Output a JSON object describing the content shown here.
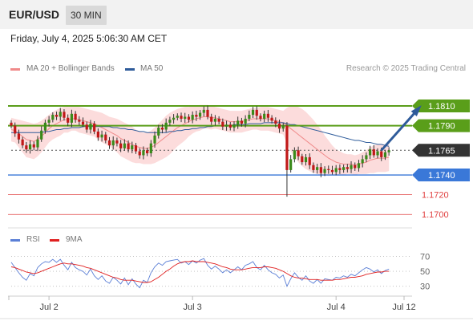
{
  "header": {
    "symbol": "EUR/USD",
    "timeframe": "30 MIN"
  },
  "datetime": "Friday, July 4, 2025 5:06:30 AM CET",
  "legend": {
    "bollinger": {
      "label": "MA 20 + Bollinger Bands",
      "color": "#f08a8a"
    },
    "ma50": {
      "label": "MA 50",
      "color": "#2e5b9a"
    },
    "copyright": "Research © 2025 Trading Central"
  },
  "rsi_legend": {
    "rsi": {
      "label": "RSI",
      "color": "#5b7fd6"
    },
    "ma9": {
      "label": "9MA",
      "color": "#e02020"
    }
  },
  "colors": {
    "green": "#5a9e1a",
    "blue": "#3a78d8",
    "red": "#e04040",
    "dark": "#333333",
    "candle_up": "#3a8a1a",
    "candle_down": "#c01818"
  },
  "chart_data": [
    {
      "type": "candlestick",
      "ylim": [
        1.1688,
        1.1836
      ],
      "x_ticks": [
        {
          "label": "Jul 2",
          "index": 10
        },
        {
          "label": "Jul 3",
          "index": 48
        },
        {
          "label": "Jul 4",
          "index": 86
        },
        {
          "label": "Jul 12",
          "index": 104
        }
      ],
      "levels": [
        {
          "label": "1.1810",
          "value": 1.181,
          "kind": "resistance",
          "color": "#5a9e1a"
        },
        {
          "label": "1.1790",
          "value": 1.179,
          "kind": "resistance",
          "color": "#5a9e1a"
        },
        {
          "label": "1.1765",
          "value": 1.1765,
          "kind": "last",
          "color": "#333333"
        },
        {
          "label": "1.1740",
          "value": 1.174,
          "kind": "pivot",
          "color": "#3a78d8"
        },
        {
          "label": "1.1720",
          "value": 1.172,
          "kind": "support",
          "color": "#e04040"
        },
        {
          "label": "1.1700",
          "value": 1.17,
          "kind": "support",
          "color": "#e04040"
        }
      ],
      "arrow": {
        "from": [
          1.1765,
          98
        ],
        "to": [
          1.1808,
          108
        ]
      },
      "closes": [
        1.179,
        1.1782,
        1.1776,
        1.177,
        1.1766,
        1.1771,
        1.1768,
        1.1776,
        1.1785,
        1.1793,
        1.1796,
        1.1801,
        1.1799,
        1.1804,
        1.1798,
        1.1793,
        1.1802,
        1.1796,
        1.1794,
        1.1791,
        1.1786,
        1.1792,
        1.1784,
        1.1778,
        1.1781,
        1.1775,
        1.177,
        1.1775,
        1.1772,
        1.1767,
        1.1772,
        1.1766,
        1.177,
        1.1764,
        1.176,
        1.1765,
        1.1762,
        1.1772,
        1.178,
        1.1788,
        1.1786,
        1.1793,
        1.1796,
        1.1798,
        1.18,
        1.1797,
        1.1799,
        1.1796,
        1.1801,
        1.1799,
        1.1803,
        1.1806,
        1.1799,
        1.1794,
        1.1797,
        1.1794,
        1.1789,
        1.1791,
        1.1788,
        1.1791,
        1.1795,
        1.1792,
        1.1797,
        1.1801,
        1.1806,
        1.18,
        1.1797,
        1.1802,
        1.1798,
        1.1795,
        1.1792,
        1.1787,
        1.179,
        1.1745,
        1.1756,
        1.1765,
        1.1759,
        1.1753,
        1.1758,
        1.175,
        1.1745,
        1.1748,
        1.1742,
        1.1746,
        1.1745,
        1.1743,
        1.1747,
        1.1745,
        1.1748,
        1.1746,
        1.175,
        1.1747,
        1.1752,
        1.1756,
        1.176,
        1.1766,
        1.176,
        1.1764,
        1.1758,
        1.1763,
        1.1765
      ],
      "ma20": [
        1.1786,
        1.1785,
        1.1782,
        1.1779,
        1.1776,
        1.1775,
        1.1774,
        1.1776,
        1.1779,
        1.1783,
        1.1787,
        1.179,
        1.1792,
        1.1794,
        1.1796,
        1.1796,
        1.1797,
        1.1797,
        1.1796,
        1.1795,
        1.1794,
        1.1793,
        1.1792,
        1.179,
        1.1788,
        1.1786,
        1.1784,
        1.1782,
        1.178,
        1.1777,
        1.1775,
        1.1773,
        1.1771,
        1.1769,
        1.1768,
        1.1767,
        1.1767,
        1.1768,
        1.177,
        1.1773,
        1.1776,
        1.1779,
        1.1782,
        1.1785,
        1.1788,
        1.179,
        1.1792,
        1.1794,
        1.1796,
        1.1797,
        1.1798,
        1.1799,
        1.1799,
        1.1798,
        1.1798,
        1.1797,
        1.1796,
        1.1795,
        1.1794,
        1.1794,
        1.1794,
        1.1794,
        1.1795,
        1.1796,
        1.1797,
        1.1797,
        1.1797,
        1.1797,
        1.1797,
        1.1796,
        1.1795,
        1.1794,
        1.1793,
        1.179,
        1.1787,
        1.1784,
        1.1781,
        1.1778,
        1.1775,
        1.1772,
        1.1769,
        1.1766,
        1.1763,
        1.176,
        1.1757,
        1.1755,
        1.1753,
        1.1752,
        1.1751,
        1.1751,
        1.1751,
        1.175,
        1.1751,
        1.1752,
        1.1753,
        1.1755,
        1.1756,
        1.1757,
        1.1757,
        1.1757,
        1.1758
      ],
      "bb_upper": [
        1.1798,
        1.1797,
        1.1796,
        1.1795,
        1.1794,
        1.1793,
        1.1792,
        1.1793,
        1.1795,
        1.1798,
        1.1801,
        1.1804,
        1.1806,
        1.1808,
        1.1809,
        1.1809,
        1.1809,
        1.1809,
        1.1809,
        1.1808,
        1.1807,
        1.1806,
        1.1805,
        1.1804,
        1.1803,
        1.1801,
        1.1799,
        1.1798,
        1.1797,
        1.1795,
        1.1793,
        1.1791,
        1.1789,
        1.1786,
        1.1784,
        1.1783,
        1.1783,
        1.1785,
        1.1788,
        1.1792,
        1.1796,
        1.18,
        1.1803,
        1.1805,
        1.1807,
        1.1808,
        1.1809,
        1.1809,
        1.181,
        1.181,
        1.1811,
        1.1811,
        1.1811,
        1.181,
        1.1809,
        1.1808,
        1.1807,
        1.1806,
        1.1805,
        1.1805,
        1.1805,
        1.1805,
        1.1806,
        1.1807,
        1.1808,
        1.1808,
        1.1809,
        1.1809,
        1.1809,
        1.1808,
        1.1807,
        1.1806,
        1.1805,
        1.1808,
        1.181,
        1.181,
        1.1809,
        1.1807,
        1.1804,
        1.18,
        1.1796,
        1.1791,
        1.1786,
        1.178,
        1.1775,
        1.177,
        1.1766,
        1.1764,
        1.1762,
        1.1761,
        1.1761,
        1.176,
        1.1761,
        1.1763,
        1.1765,
        1.1768,
        1.177,
        1.1771,
        1.1771,
        1.1771,
        1.1772
      ],
      "bb_lower": [
        1.1774,
        1.1773,
        1.1768,
        1.1763,
        1.1758,
        1.1757,
        1.1756,
        1.1759,
        1.1763,
        1.1768,
        1.1773,
        1.1776,
        1.1778,
        1.178,
        1.1783,
        1.1783,
        1.1785,
        1.1785,
        1.1783,
        1.1782,
        1.1781,
        1.178,
        1.1779,
        1.1776,
        1.1773,
        1.1771,
        1.1769,
        1.1766,
        1.1763,
        1.1759,
        1.1757,
        1.1755,
        1.1753,
        1.1752,
        1.1752,
        1.1751,
        1.1751,
        1.1751,
        1.1752,
        1.1754,
        1.1756,
        1.1758,
        1.1761,
        1.1765,
        1.1769,
        1.1772,
        1.1775,
        1.1779,
        1.1782,
        1.1784,
        1.1785,
        1.1787,
        1.1787,
        1.1786,
        1.1787,
        1.1786,
        1.1785,
        1.1784,
        1.1783,
        1.1783,
        1.1783,
        1.1783,
        1.1784,
        1.1785,
        1.1786,
        1.1786,
        1.1785,
        1.1785,
        1.1785,
        1.1784,
        1.1783,
        1.1782,
        1.1781,
        1.1772,
        1.1764,
        1.1758,
        1.1753,
        1.1749,
        1.1746,
        1.1744,
        1.1742,
        1.1741,
        1.174,
        1.174,
        1.1739,
        1.174,
        1.174,
        1.174,
        1.174,
        1.1741,
        1.1741,
        1.174,
        1.1741,
        1.1741,
        1.1741,
        1.1742,
        1.1742,
        1.1743,
        1.1743,
        1.1743,
        1.1744
      ],
      "ma50": [
        1.1783,
        1.1783,
        1.1783,
        1.1783,
        1.1783,
        1.1783,
        1.1783,
        1.1783,
        1.1783,
        1.1784,
        1.1784,
        1.1785,
        1.1786,
        1.1786,
        1.1787,
        1.1787,
        1.1788,
        1.1788,
        1.1788,
        1.1789,
        1.1789,
        1.1789,
        1.1789,
        1.1789,
        1.1789,
        1.1789,
        1.1789,
        1.1788,
        1.1788,
        1.1787,
        1.1787,
        1.1786,
        1.1786,
        1.1785,
        1.1784,
        1.1784,
        1.1783,
        1.1783,
        1.1783,
        1.1783,
        1.1783,
        1.1783,
        1.1784,
        1.1784,
        1.1785,
        1.1785,
        1.1786,
        1.1786,
        1.1787,
        1.1787,
        1.1788,
        1.1788,
        1.1789,
        1.1789,
        1.179,
        1.179,
        1.179,
        1.179,
        1.179,
        1.1791,
        1.1791,
        1.1791,
        1.1791,
        1.1792,
        1.1792,
        1.1792,
        1.1792,
        1.1793,
        1.1793,
        1.1793,
        1.1793,
        1.1793,
        1.1793,
        1.1792,
        1.1791,
        1.1791,
        1.179,
        1.1789,
        1.1788,
        1.1787,
        1.1786,
        1.1785,
        1.1784,
        1.1783,
        1.1782,
        1.1781,
        1.178,
        1.1779,
        1.1778,
        1.1777,
        1.1776,
        1.1775,
        1.1775,
        1.1774,
        1.1773,
        1.1773,
        1.1772,
        1.1771,
        1.1771,
        1.177,
        1.1769
      ]
    },
    {
      "type": "line",
      "name": "RSI",
      "ylim": [
        20,
        78
      ],
      "y_ticks": [
        "70",
        "50",
        "30"
      ],
      "rsi": [
        62,
        55,
        48,
        42,
        38,
        47,
        44,
        55,
        60,
        63,
        62,
        66,
        62,
        66,
        58,
        52,
        62,
        55,
        52,
        50,
        45,
        53,
        44,
        39,
        44,
        37,
        34,
        42,
        38,
        33,
        41,
        32,
        40,
        33,
        28,
        38,
        35,
        48,
        56,
        61,
        58,
        63,
        64,
        65,
        66,
        61,
        63,
        59,
        64,
        61,
        65,
        67,
        58,
        53,
        57,
        53,
        48,
        52,
        48,
        52,
        56,
        52,
        58,
        60,
        63,
        55,
        52,
        58,
        52,
        48,
        46,
        41,
        45,
        30,
        40,
        48,
        42,
        38,
        44,
        37,
        34,
        39,
        34,
        40,
        39,
        38,
        42,
        41,
        44,
        42,
        46,
        44,
        48,
        52,
        55,
        53,
        49,
        52,
        47,
        51,
        53
      ],
      "ma9": [
        56,
        55,
        53,
        51,
        49,
        48,
        47,
        48,
        50,
        52,
        54,
        56,
        58,
        60,
        61,
        60,
        60,
        59,
        58,
        57,
        55,
        54,
        52,
        50,
        48,
        46,
        44,
        42,
        41,
        39,
        38,
        38,
        38,
        37,
        36,
        35,
        35,
        36,
        39,
        42,
        46,
        50,
        53,
        57,
        60,
        62,
        63,
        63,
        64,
        63,
        63,
        63,
        62,
        61,
        60,
        58,
        56,
        55,
        53,
        52,
        52,
        52,
        53,
        54,
        55,
        55,
        55,
        56,
        56,
        55,
        54,
        52,
        50,
        47,
        44,
        42,
        41,
        41,
        40,
        39,
        39,
        39,
        38,
        38,
        38,
        38,
        39,
        39,
        40,
        41,
        42,
        42,
        43,
        44,
        46,
        47,
        48,
        49,
        49,
        50,
        50
      ]
    }
  ]
}
